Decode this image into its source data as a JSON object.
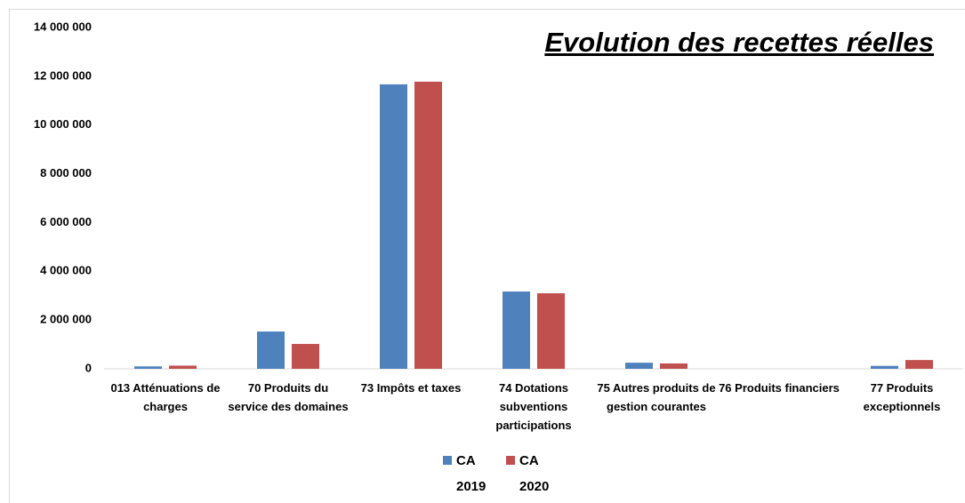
{
  "chart_data": {
    "type": "bar",
    "title": "Evolution  des recettes réelles",
    "categories": [
      "013 Atténuations de charges",
      "70 Produits du service des domaines",
      "73 Impôts et taxes",
      "74 Dotations subventions participations",
      "75 Autres produits de gestion courantes",
      "76 Produits financiers",
      "77 Produits exceptionnels"
    ],
    "series": [
      {
        "name": "CA 2019",
        "color": "#4f81bd",
        "values": [
          100000,
          1530000,
          11670000,
          3170000,
          250000,
          0,
          120000
        ]
      },
      {
        "name": "CA 2020",
        "color": "#c0504d",
        "values": [
          130000,
          1020000,
          11780000,
          3100000,
          220000,
          0,
          360000
        ]
      }
    ],
    "ylim": [
      0,
      14000000
    ],
    "yticks": [
      0,
      {
        "value": 2000000,
        "label": "2 000 000"
      },
      {
        "value": 4000000,
        "label": "4 000 000"
      },
      {
        "value": 6000000,
        "label": "6 000 000"
      },
      {
        "value": 8000000,
        "label": "8 000 000"
      },
      {
        "value": 10000000,
        "label": "10 000 000"
      },
      {
        "value": 12000000,
        "label": "12 000 000"
      },
      {
        "value": 14000000,
        "label": "14 000 000"
      }
    ],
    "grid": false,
    "legend": "bottom"
  }
}
